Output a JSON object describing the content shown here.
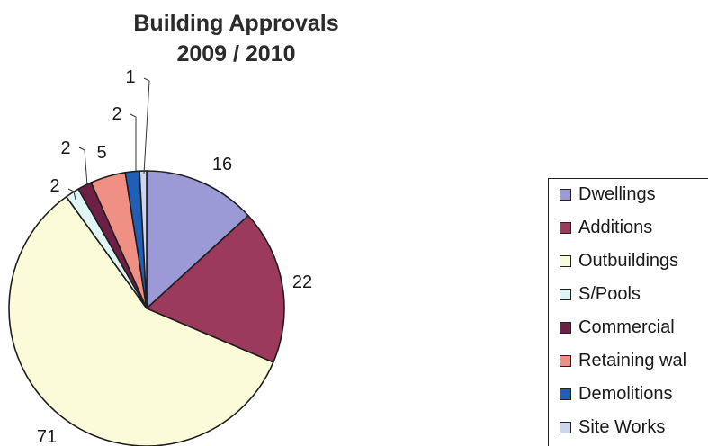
{
  "chart_data": {
    "type": "pie",
    "title": "Building Approvals",
    "subtitle": "2009 / 2010",
    "categories": [
      "Dwellings",
      "Additions",
      "Outbuildings",
      "S/Pools",
      "Commercial",
      "Retaining wal",
      "Demolitions",
      "Site Works"
    ],
    "values": [
      16,
      22,
      71,
      2,
      2,
      5,
      2,
      1
    ],
    "data_labels": [
      "16",
      "22",
      "71",
      "2",
      "2",
      "5",
      "2",
      "1"
    ],
    "colors": [
      "#9b9ad6",
      "#9b3a5c",
      "#fbfbd9",
      "#dff4f4",
      "#6e1f45",
      "#f08f84",
      "#1f5fb8",
      "#cdd6f0"
    ],
    "start_angle_deg": 0,
    "direction": "clockwise",
    "legend": "right"
  }
}
